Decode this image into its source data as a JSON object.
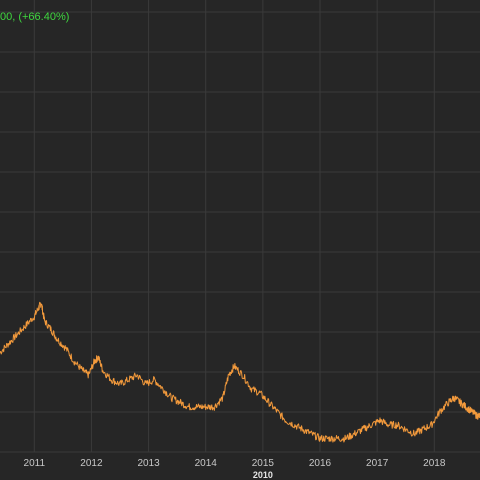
{
  "header": {
    "change_text": "00, (+66.40%)",
    "change_color": "#3fd83f"
  },
  "colors": {
    "background": "#262626",
    "grid": "#3a3a3a",
    "series": "#f39a3c",
    "tick_text": "#c8c8c8"
  },
  "chart_data": {
    "type": "line",
    "title": "",
    "xlabel": "",
    "ylabel": "",
    "grid": true,
    "legend": "none",
    "x_tick_labels": [
      "2011",
      "2012",
      "2013",
      "2014",
      "2015",
      "2016",
      "2017",
      "2018"
    ],
    "x_era_label": "2010",
    "xlim": [
      2010.4,
      2018.8
    ],
    "ylim": [
      0,
      100
    ],
    "series": [
      {
        "values_note_free": true,
        "points": [
          [
            2010.4,
            22
          ],
          [
            2010.55,
            24
          ],
          [
            2010.7,
            26
          ],
          [
            2010.85,
            28
          ],
          [
            2011.0,
            30
          ],
          [
            2011.08,
            32
          ],
          [
            2011.12,
            33
          ],
          [
            2011.18,
            29
          ],
          [
            2011.3,
            27
          ],
          [
            2011.4,
            25
          ],
          [
            2011.55,
            23
          ],
          [
            2011.7,
            20
          ],
          [
            2011.85,
            18
          ],
          [
            2011.95,
            17
          ],
          [
            2012.05,
            20
          ],
          [
            2012.12,
            21
          ],
          [
            2012.2,
            18
          ],
          [
            2012.35,
            16
          ],
          [
            2012.5,
            15
          ],
          [
            2012.65,
            16
          ],
          [
            2012.8,
            17
          ],
          [
            2012.95,
            15
          ],
          [
            2013.1,
            16
          ],
          [
            2013.25,
            14
          ],
          [
            2013.4,
            12
          ],
          [
            2013.55,
            11
          ],
          [
            2013.7,
            10
          ],
          [
            2013.85,
            10
          ],
          [
            2014.0,
            10
          ],
          [
            2014.15,
            10
          ],
          [
            2014.3,
            12
          ],
          [
            2014.4,
            17
          ],
          [
            2014.5,
            19
          ],
          [
            2014.65,
            17
          ],
          [
            2014.8,
            14
          ],
          [
            2014.95,
            13
          ],
          [
            2015.1,
            11
          ],
          [
            2015.25,
            9
          ],
          [
            2015.4,
            7
          ],
          [
            2015.55,
            6
          ],
          [
            2015.7,
            5
          ],
          [
            2015.85,
            4
          ],
          [
            2016.0,
            3
          ],
          [
            2016.15,
            3
          ],
          [
            2016.3,
            3
          ],
          [
            2016.45,
            3
          ],
          [
            2016.6,
            4
          ],
          [
            2016.75,
            5
          ],
          [
            2016.9,
            6
          ],
          [
            2017.05,
            7
          ],
          [
            2017.2,
            6
          ],
          [
            2017.35,
            6
          ],
          [
            2017.5,
            5
          ],
          [
            2017.65,
            4
          ],
          [
            2017.8,
            5
          ],
          [
            2017.95,
            6
          ],
          [
            2018.1,
            9
          ],
          [
            2018.25,
            11
          ],
          [
            2018.35,
            12
          ],
          [
            2018.45,
            11
          ],
          [
            2018.55,
            10
          ],
          [
            2018.65,
            9
          ],
          [
            2018.75,
            8
          ],
          [
            2018.8,
            8
          ]
        ]
      }
    ]
  }
}
